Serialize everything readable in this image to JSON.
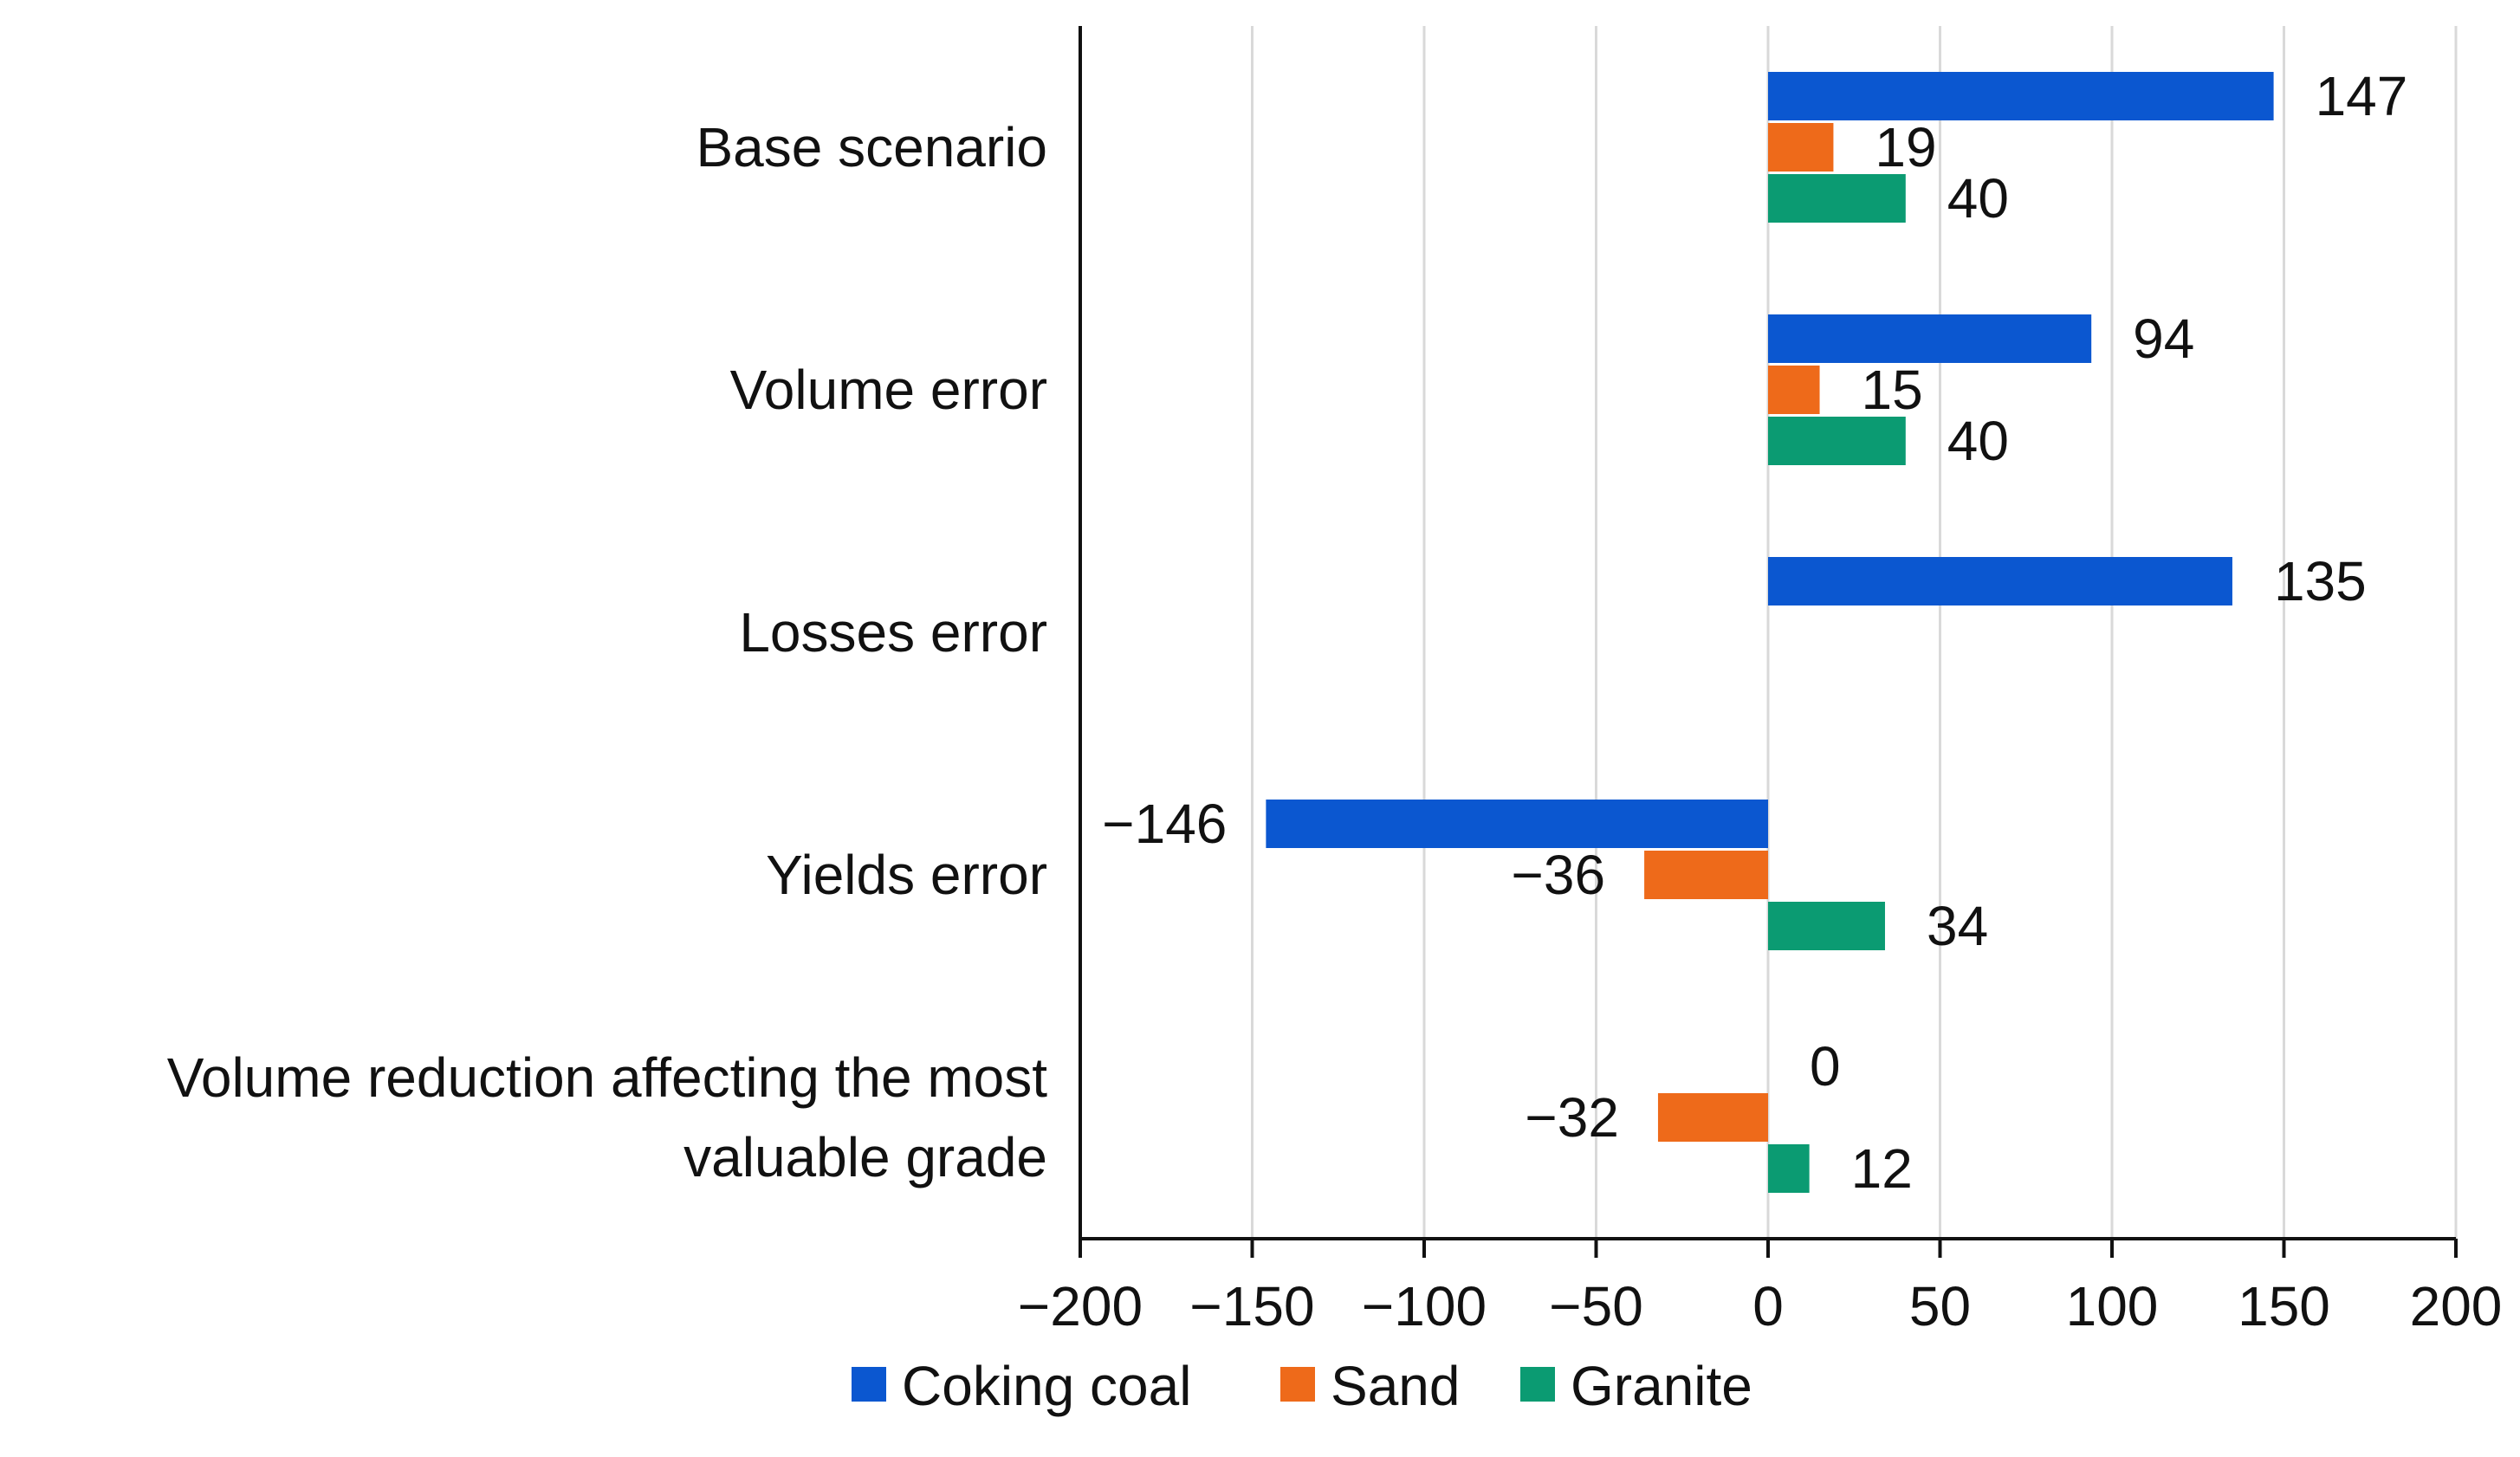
{
  "chart_data": {
    "type": "bar",
    "orientation": "horizontal",
    "categories": [
      "Base scenario",
      "Volume error",
      "Losses error",
      "Yields error",
      "Volume reduction affecting the most valuable grade"
    ],
    "category_lines": [
      [
        "Base scenario"
      ],
      [
        "Volume error"
      ],
      [
        "Losses error"
      ],
      [
        "Yields error"
      ],
      [
        "Volume reduction affecting the most",
        "valuable grade"
      ]
    ],
    "series": [
      {
        "name": "Coking coal",
        "color": "#0b57d0",
        "values": [
          147,
          94,
          135,
          -146,
          0
        ],
        "labels": [
          "147",
          "94",
          "135",
          "−146",
          "0"
        ]
      },
      {
        "name": "Sand",
        "color": "#ee6a1a",
        "values": [
          19,
          15,
          null,
          -36,
          -32
        ],
        "labels": [
          "19",
          "15",
          "",
          "−36",
          "−32"
        ]
      },
      {
        "name": "Granite",
        "color": "#0b9b72",
        "values": [
          40,
          40,
          null,
          34,
          12
        ],
        "labels": [
          "40",
          "40",
          "",
          "34",
          "12"
        ]
      }
    ],
    "xlim": [
      -200,
      200
    ],
    "xticks": [
      -200,
      -150,
      -100,
      -50,
      0,
      50,
      100,
      150,
      200
    ],
    "xtick_labels": [
      "−200",
      "−150",
      "−100",
      "−50",
      "0",
      "50",
      "100",
      "150",
      "200"
    ],
    "grid": true,
    "legend_position": "bottom",
    "title": "",
    "xlabel": "",
    "ylabel": ""
  }
}
